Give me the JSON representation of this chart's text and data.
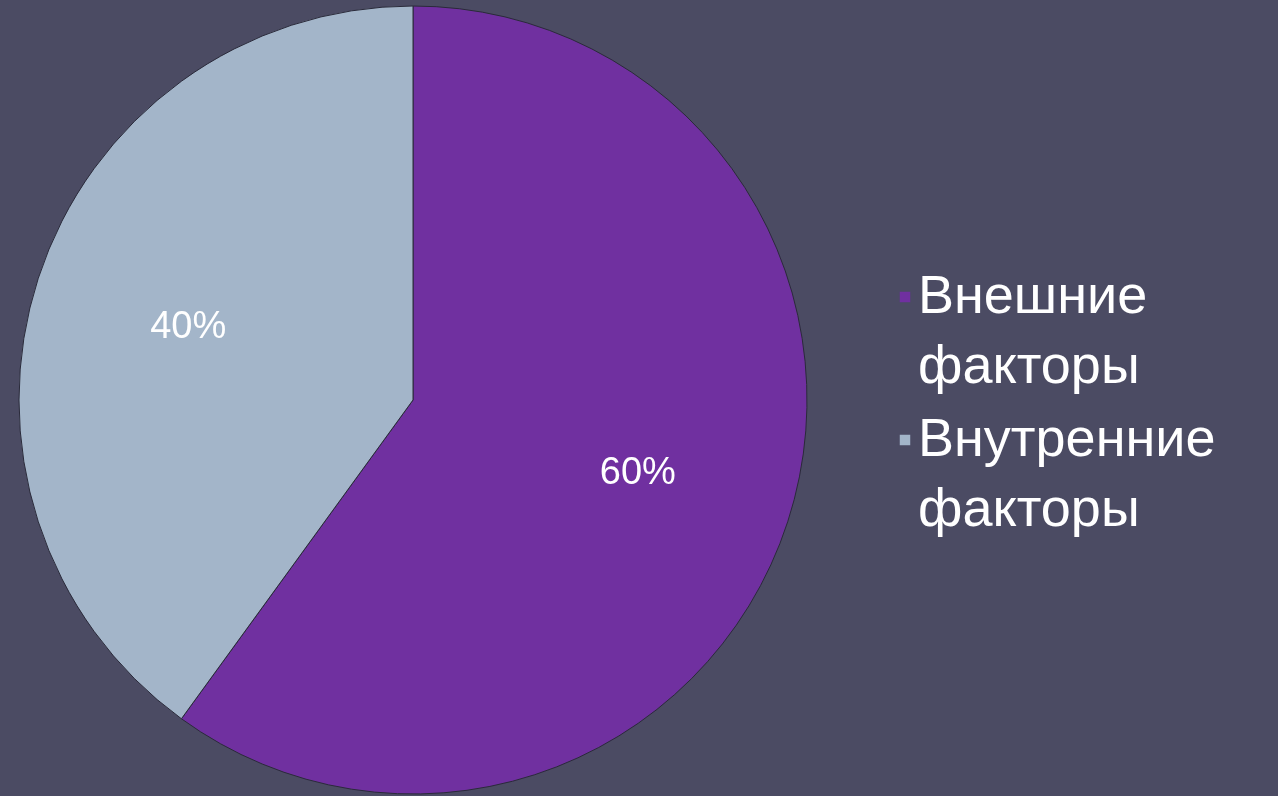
{
  "chart_data": {
    "type": "pie",
    "categories": [
      "Внешние факторы",
      "Внутренние факторы"
    ],
    "values": [
      60,
      40
    ],
    "colors": [
      "#7030a0",
      "#a3b5c9"
    ],
    "value_labels": [
      "60%",
      "40%"
    ],
    "legend": "right"
  }
}
